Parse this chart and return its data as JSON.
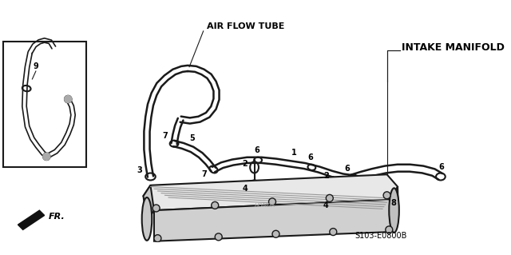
{
  "bg_color": "#ffffff",
  "line_color": "#1a1a1a",
  "text_color": "#000000",
  "gray_color": "#888888",
  "labels": {
    "air_flow_tube": "AIR FLOW TUBE",
    "intake_manifold": "INTAKE MANIFOLD",
    "part_code": "S103-E0800B",
    "fr_label": "FR."
  },
  "figsize": [
    6.4,
    3.19
  ],
  "dpi": 100
}
